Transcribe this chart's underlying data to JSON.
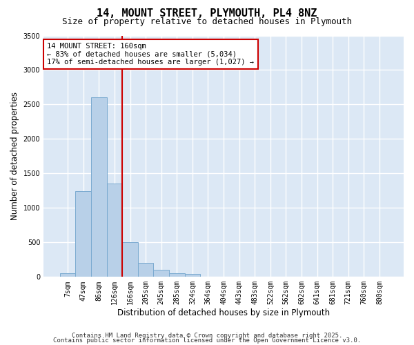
{
  "title1": "14, MOUNT STREET, PLYMOUTH, PL4 8NZ",
  "title2": "Size of property relative to detached houses in Plymouth",
  "xlabel": "Distribution of detached houses by size in Plymouth",
  "ylabel": "Number of detached properties",
  "categories": [
    "7sqm",
    "47sqm",
    "86sqm",
    "126sqm",
    "166sqm",
    "205sqm",
    "245sqm",
    "285sqm",
    "324sqm",
    "364sqm",
    "404sqm",
    "443sqm",
    "483sqm",
    "522sqm",
    "562sqm",
    "602sqm",
    "641sqm",
    "681sqm",
    "721sqm",
    "760sqm",
    "800sqm"
  ],
  "values": [
    55,
    1240,
    2600,
    1350,
    500,
    200,
    105,
    55,
    40,
    0,
    0,
    0,
    0,
    0,
    0,
    0,
    0,
    0,
    0,
    0,
    0
  ],
  "bar_color": "#b8d0e8",
  "bar_edge_color": "#7aaad0",
  "vline_color": "#cc0000",
  "annotation_line1": "14 MOUNT STREET: 160sqm",
  "annotation_line2": "← 83% of detached houses are smaller (5,034)",
  "annotation_line3": "17% of semi-detached houses are larger (1,027) →",
  "annotation_box_color": "#ffffff",
  "annotation_box_edge": "#cc0000",
  "ylim": [
    0,
    3500
  ],
  "yticks": [
    0,
    500,
    1000,
    1500,
    2000,
    2500,
    3000,
    3500
  ],
  "background_color": "#dce8f5",
  "grid_color": "#ffffff",
  "footer1": "Contains HM Land Registry data © Crown copyright and database right 2025.",
  "footer2": "Contains public sector information licensed under the Open Government Licence v3.0.",
  "title_fontsize": 11,
  "subtitle_fontsize": 9,
  "axis_label_fontsize": 8.5,
  "tick_fontsize": 7,
  "annotation_fontsize": 7.5,
  "footer_fontsize": 6.5
}
